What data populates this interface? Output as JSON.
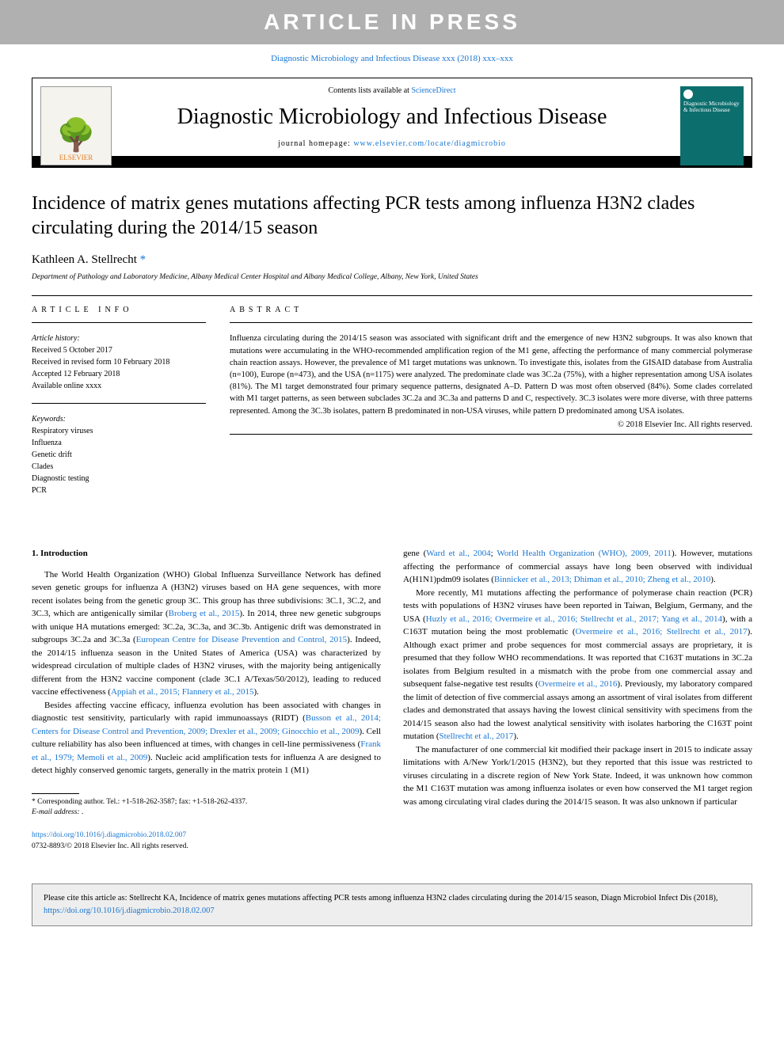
{
  "banner": "ARTICLE IN PRESS",
  "citation_prefix": "Diagnostic Microbiology and Infectious Disease xxx (2018) xxx–xxx",
  "header": {
    "contents_line_prefix": "Contents lists available at ",
    "contents_link": "ScienceDirect",
    "journal_name": "Diagnostic Microbiology and Infectious Disease",
    "homepage_prefix": "journal homepage: ",
    "homepage_url": "www.elsevier.com/locate/diagmicrobio",
    "elsevier_label": "ELSEVIER",
    "cover_text": "Diagnostic Microbiology & Infectious Disease"
  },
  "title": "Incidence of matrix genes mutations affecting PCR tests among influenza H3N2 clades circulating during the 2014/15 season",
  "author": "Kathleen A. Stellrecht",
  "author_marker": "*",
  "affiliation": "Department of Pathology and Laboratory Medicine, Albany Medical Center Hospital and Albany Medical College, Albany, New York, United States",
  "info": {
    "label": "ARTICLE INFO",
    "history_heading": "Article history:",
    "received": "Received 5 October 2017",
    "revised": "Received in revised form 10 February 2018",
    "accepted": "Accepted 12 February 2018",
    "online": "Available online xxxx",
    "keywords_heading": "Keywords:",
    "keywords": [
      "Respiratory viruses",
      "Influenza",
      "Genetic drift",
      "Clades",
      "Diagnostic testing",
      "PCR"
    ]
  },
  "abstract": {
    "label": "ABSTRACT",
    "text": "Influenza circulating during the 2014/15 season was associated with significant drift and the emergence of new H3N2 subgroups. It was also known that mutations were accumulating in the WHO-recommended amplification region of the M1 gene, affecting the performance of many commercial polymerase chain reaction assays. However, the prevalence of M1 target mutations was unknown. To investigate this, isolates from the GISAID database from Australia (n=100), Europe (n=473), and the USA (n=1175) were analyzed. The predominate clade was 3C.2a (75%), with a higher representation among USA isolates (81%). The M1 target demonstrated four primary sequence patterns, designated A–D. Pattern D was most often observed (84%). Some clades correlated with M1 target patterns, as seen between subclades 3C.2a and 3C.3a and patterns D and C, respectively. 3C.3 isolates were more diverse, with three patterns represented. Among the 3C.3b isolates, pattern B predominated in non-USA viruses, while pattern D predominated among USA isolates.",
    "copyright": "© 2018 Elsevier Inc. All rights reserved."
  },
  "body": {
    "intro_heading": "1. Introduction",
    "col1_p1a": "The World Health Organization (WHO) Global Influenza Surveillance Network has defined seven genetic groups for influenza A (H3N2) viruses based on HA gene sequences, with more recent isolates being from the genetic group 3C. This group has three subdivisions: 3C.1, 3C.2, and 3C.3, which are antigenically similar (",
    "col1_p1_link1": "Broberg et al., 2015",
    "col1_p1b": "). In 2014, three new genetic subgroups with unique HA mutations emerged: 3C.2a, 3C.3a, and 3C.3b. Antigenic drift was demonstrated in subgroups 3C.2a and 3C.3a (",
    "col1_p1_link2": "European Centre for Disease Prevention and Control, 2015",
    "col1_p1c": "). Indeed, the 2014/15 influenza season in the United States of America (USA) was characterized by widespread circulation of multiple clades of H3N2 viruses, with the majority being antigenically different from the H3N2 vaccine component (clade 3C.1 A/Texas/50/2012), leading to reduced vaccine effectiveness (",
    "col1_p1_link3": "Appiah et al., 2015; Flannery et al., 2015",
    "col1_p1d": ").",
    "col1_p2a": "Besides affecting vaccine efficacy, influenza evolution has been associated with changes in diagnostic test sensitivity, particularly with rapid immunoassays (RIDT) (",
    "col1_p2_link1": "Busson et al., 2014; Centers for Disease Control and Prevention, 2009; Drexler et al., 2009; Ginocchio et al., 2009",
    "col1_p2b": "). Cell culture reliability has also been influenced at times, with changes in cell-line permissiveness (",
    "col1_p2_link2": "Frank et al., 1979; Memoli et al., 2009",
    "col1_p2c": "). Nucleic acid amplification tests for influenza A are designed to detect highly conserved genomic targets, generally in the matrix protein 1 (M1)",
    "col2_p0a": "gene (",
    "col2_p0_link1": "Ward et al., 2004",
    "col2_p0_semi": "; ",
    "col2_p0_link2": "World Health Organization (WHO), 2009, 2011",
    "col2_p0b": "). However, mutations affecting the performance of commercial assays have long been observed with individual A(H1N1)pdm09 isolates (",
    "col2_p0_link3": "Binnicker et al., 2013; Dhiman et al., 2010; Zheng et al., 2010",
    "col2_p0c": ").",
    "col2_p1a": "More recently, M1 mutations affecting the performance of polymerase chain reaction (PCR) tests with populations of H3N2 viruses have been reported in Taiwan, Belgium, Germany, and the USA (",
    "col2_p1_link1": "Huzly et al., 2016; Overmeire et al., 2016; Stellrecht et al., 2017; Yang et al., 2014",
    "col2_p1b": "), with a C163T mutation being the most problematic (",
    "col2_p1_link2": "Overmeire et al., 2016; Stellrecht et al., 2017",
    "col2_p1c": "). Although exact primer and probe sequences for most commercial assays are proprietary, it is presumed that they follow WHO recommendations. It was reported that C163T mutations in 3C.2a isolates from Belgium resulted in a mismatch with the probe from one commercial assay and subsequent false-negative test results (",
    "col2_p1_link3": "Overmeire et al., 2016",
    "col2_p1d": "). Previously, my laboratory compared the limit of detection of five commercial assays among an assortment of viral isolates from different clades and demonstrated that assays having the lowest clinical sensitivity with specimens from the 2014/15 season also had the lowest analytical sensitivity with isolates harboring the C163T point mutation (",
    "col2_p1_link4": "Stellrecht et al., 2017",
    "col2_p1e": ").",
    "col2_p2": "The manufacturer of one commercial kit modified their package insert in 2015 to indicate assay limitations with A/New York/1/2015 (H3N2), but they reported that this issue was restricted to viruses circulating in a discrete region of New York State. Indeed, it was unknown how common the M1 C163T mutation was among influenza isolates or even how conserved the M1 target region was among circulating viral clades during the 2014/15 season. It was also unknown if particular"
  },
  "footnotes": {
    "corresponding": "*   Corresponding author. Tel.: +1-518-262-3587; fax: +1-518-262-4337.",
    "email_label": "E-mail address: ",
    "email_value": "."
  },
  "doi": {
    "url": "https://doi.org/10.1016/j.diagmicrobio.2018.02.007",
    "issn_line": "0732-8893/© 2018 Elsevier Inc. All rights reserved."
  },
  "citebox": {
    "prefix": "Please cite this article as: Stellrecht KA, Incidence of matrix genes mutations affecting PCR tests among influenza H3N2 clades circulating during the 2014/15 season, Diagn Microbiol Infect Dis (2018), ",
    "link": "https://doi.org/10.1016/j.diagmicrobio.2018.02.007"
  },
  "colors": {
    "banner_bg": "#b0b0b0",
    "link": "#1976d2",
    "cover_bg": "#0d6e6e",
    "citebox_bg": "#eeeeee"
  }
}
